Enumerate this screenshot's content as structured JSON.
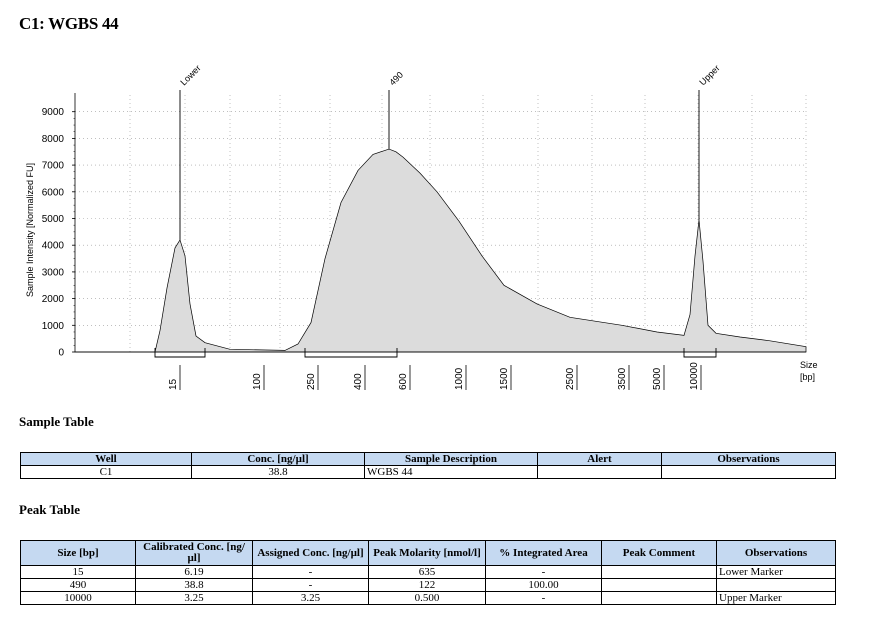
{
  "title": "C1: WGBS 44",
  "chart_data": {
    "type": "area",
    "ylabel": "Sample Intensity [Normalized FU]",
    "xlabel": "Size\n[bp]",
    "xlabel_lines": [
      "Size",
      "[bp]"
    ],
    "y_ticks": [
      0,
      1000,
      2000,
      3000,
      4000,
      5000,
      6000,
      7000,
      8000,
      9000
    ],
    "ylim": [
      0,
      9600
    ],
    "x_tick_labels": [
      "15",
      "100",
      "250",
      "400",
      "600",
      "1000",
      "1500",
      "2500",
      "3500",
      "5000",
      "10000"
    ],
    "grid": true,
    "peaks": [
      {
        "label": "Lower",
        "size_bp": 15,
        "height": 4200
      },
      {
        "label": "490",
        "size_bp": 490,
        "height": 7600
      },
      {
        "label": "Upper",
        "size_bp": 10000,
        "height": 4950
      }
    ],
    "trace": [
      {
        "x": 15,
        "y": 0
      },
      {
        "x": 15,
        "y": 2200
      },
      {
        "x": 15,
        "y": 4200
      },
      {
        "x": 15,
        "y": 2100
      },
      {
        "x": 15,
        "y": 700
      },
      {
        "x": 40,
        "y": 200
      },
      {
        "x": 100,
        "y": 80
      },
      {
        "x": 150,
        "y": 60
      },
      {
        "x": 200,
        "y": 300
      },
      {
        "x": 250,
        "y": 1100
      },
      {
        "x": 300,
        "y": 3500
      },
      {
        "x": 350,
        "y": 5600
      },
      {
        "x": 400,
        "y": 6800
      },
      {
        "x": 450,
        "y": 7400
      },
      {
        "x": 490,
        "y": 7600
      },
      {
        "x": 550,
        "y": 7500
      },
      {
        "x": 600,
        "y": 7300
      },
      {
        "x": 700,
        "y": 6700
      },
      {
        "x": 800,
        "y": 6000
      },
      {
        "x": 1000,
        "y": 4900
      },
      {
        "x": 1250,
        "y": 3600
      },
      {
        "x": 1500,
        "y": 2500
      },
      {
        "x": 2000,
        "y": 1800
      },
      {
        "x": 2500,
        "y": 1300
      },
      {
        "x": 3500,
        "y": 1000
      },
      {
        "x": 5000,
        "y": 750
      },
      {
        "x": 8000,
        "y": 600
      },
      {
        "x": 10000,
        "y": 4950
      },
      {
        "x": 12000,
        "y": 650
      },
      {
        "x": 20000,
        "y": 450
      },
      {
        "x": 40000,
        "y": 200
      }
    ]
  },
  "sample_table": {
    "heading": "Sample Table",
    "columns": [
      "Well",
      "Conc. [ng/µl]",
      "Sample Description",
      "Alert",
      "Observations"
    ],
    "rows": [
      [
        "C1",
        "38.8",
        "WGBS 44",
        "",
        ""
      ]
    ]
  },
  "peak_table": {
    "heading": "Peak Table",
    "columns": [
      "Size [bp]",
      "Calibrated Conc. [ng/µl]",
      "Assigned Conc. [ng/µl]",
      "Peak Molarity [nmol/l]",
      "% Integrated Area",
      "Peak Comment",
      "Observations"
    ],
    "rows": [
      [
        "15",
        "6.19",
        "-",
        "635",
        "-",
        "",
        "Lower Marker"
      ],
      [
        "490",
        "38.8",
        "-",
        "122",
        "100.00",
        "",
        ""
      ],
      [
        "10000",
        "3.25",
        "3.25",
        "0.500",
        "-",
        "",
        "Upper Marker"
      ]
    ]
  },
  "colors": {
    "fill": "#dcdcdc",
    "line": "#000000",
    "grid": "#999999",
    "header_bg": "#c5d9f1"
  }
}
